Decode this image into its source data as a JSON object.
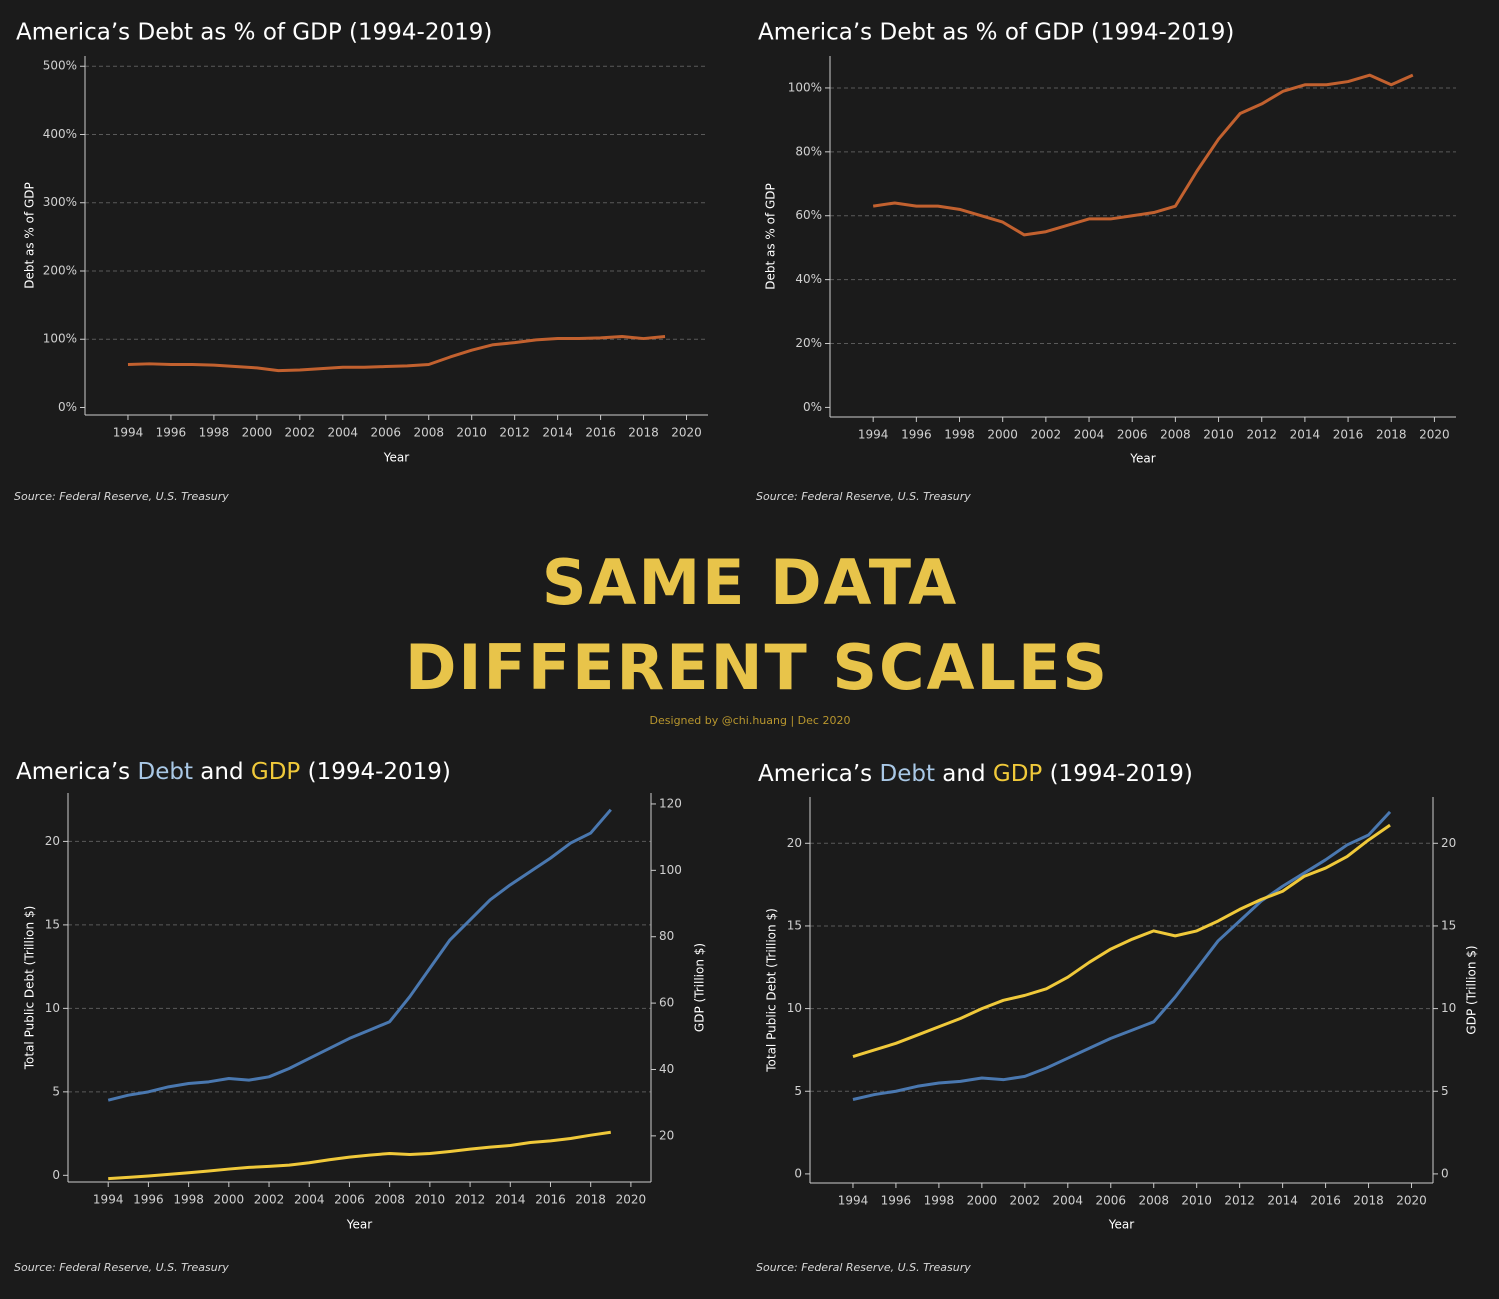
{
  "header": {
    "headline": [
      "SAME DATA",
      "DIFFERENT SCALES"
    ],
    "credit": "Designed by @chi.huang | Dec 2020"
  },
  "chart_data": [
    {
      "type": "line",
      "title": "America’s Debt as % of GDP (1994-2019)",
      "x_label": "Year",
      "y_label": "Debt as % of GDP",
      "source": "Source: Federal Reserve, U.S. Treasury",
      "x": [
        1994,
        1995,
        1996,
        1997,
        1998,
        1999,
        2000,
        2001,
        2002,
        2003,
        2004,
        2005,
        2006,
        2007,
        2008,
        2009,
        2010,
        2011,
        2012,
        2013,
        2014,
        2015,
        2016,
        2017,
        2018,
        2019
      ],
      "values": [
        63,
        64,
        63,
        63,
        62,
        60,
        58,
        54,
        55,
        57,
        59,
        59,
        60,
        61,
        63,
        74,
        84,
        92,
        95,
        99,
        101,
        101,
        102,
        104,
        101,
        104
      ],
      "color": "#c2612f",
      "grid": true,
      "xlim": [
        1992,
        2021
      ],
      "xticks": [
        1994,
        1996,
        1998,
        2000,
        2002,
        2004,
        2006,
        2008,
        2010,
        2012,
        2014,
        2016,
        2018,
        2020
      ],
      "ylim": [
        -11,
        515
      ],
      "yticks": [
        {
          "value": 0,
          "label": "0%"
        },
        {
          "value": 100,
          "label": "100%"
        },
        {
          "value": 200,
          "label": "200%"
        },
        {
          "value": 300,
          "label": "300%"
        },
        {
          "value": 400,
          "label": "400%"
        },
        {
          "value": 500,
          "label": "500%"
        }
      ]
    },
    {
      "type": "line",
      "title": "America’s Debt as % of GDP (1994-2019)",
      "x_label": "Year",
      "y_label": "Debt as % of GDP",
      "source": "Source: Federal Reserve, U.S. Treasury",
      "x": [
        1994,
        1995,
        1996,
        1997,
        1998,
        1999,
        2000,
        2001,
        2002,
        2003,
        2004,
        2005,
        2006,
        2007,
        2008,
        2009,
        2010,
        2011,
        2012,
        2013,
        2014,
        2015,
        2016,
        2017,
        2018,
        2019
      ],
      "values": [
        63,
        64,
        63,
        63,
        62,
        60,
        58,
        54,
        55,
        57,
        59,
        59,
        60,
        61,
        63,
        74,
        84,
        92,
        95,
        99,
        101,
        101,
        102,
        104,
        101,
        104
      ],
      "color": "#c2612f",
      "grid": true,
      "xlim": [
        1992,
        2021
      ],
      "xticks": [
        1994,
        1996,
        1998,
        2000,
        2002,
        2004,
        2006,
        2008,
        2010,
        2012,
        2014,
        2016,
        2018,
        2020
      ],
      "ylim": [
        -3,
        110
      ],
      "yticks": [
        {
          "value": 0,
          "label": "0%"
        },
        {
          "value": 20,
          "label": "20%"
        },
        {
          "value": 40,
          "label": "40%"
        },
        {
          "value": 60,
          "label": "60%"
        },
        {
          "value": 80,
          "label": "80%"
        },
        {
          "value": 100,
          "label": "100%"
        }
      ]
    },
    {
      "type": "line",
      "title": "America’s Debt and GDP (1994-2019)",
      "x_label": "Year",
      "y_label": "Total Public Debt (Trillion $)",
      "y2_label": "GDP (Trillion $)",
      "source": "Source: Federal Reserve, U.S. Treasury",
      "x": [
        1994,
        1995,
        1996,
        1997,
        1998,
        1999,
        2000,
        2001,
        2002,
        2003,
        2004,
        2005,
        2006,
        2007,
        2008,
        2009,
        2010,
        2011,
        2012,
        2013,
        2014,
        2015,
        2016,
        2017,
        2018,
        2019
      ],
      "series": [
        {
          "name": "Debt",
          "color": "#4a78b0",
          "title_color": "#a9c8e6",
          "values": [
            4.5,
            4.8,
            5.0,
            5.3,
            5.5,
            5.6,
            5.8,
            5.7,
            5.9,
            6.4,
            7.0,
            7.6,
            8.2,
            8.7,
            9.2,
            10.7,
            12.4,
            14.1,
            15.3,
            16.5,
            17.4,
            18.2,
            19.0,
            19.9,
            20.5,
            21.9
          ]
        },
        {
          "name": "GDP",
          "color": "#f0c93a",
          "title_color": "#f0c93a",
          "axis": "y2",
          "values": [
            7.1,
            7.5,
            7.9,
            8.4,
            8.9,
            9.4,
            10.0,
            10.5,
            10.8,
            11.2,
            11.9,
            12.8,
            13.6,
            14.2,
            14.7,
            14.4,
            14.7,
            15.3,
            16.0,
            16.6,
            17.1,
            18.0,
            18.5,
            19.2,
            20.2,
            21.1
          ]
        }
      ],
      "grid": true,
      "xlim": [
        1992,
        2021
      ],
      "xticks": [
        1994,
        1996,
        1998,
        2000,
        2002,
        2004,
        2006,
        2008,
        2010,
        2012,
        2014,
        2016,
        2018,
        2020
      ],
      "ylim": [
        -0.4,
        22.9
      ],
      "yticks": [
        0,
        5,
        10,
        15,
        20
      ],
      "y2lim": [
        6.1,
        123.3
      ],
      "y2ticks": [
        20,
        40,
        60,
        80,
        100,
        120
      ]
    },
    {
      "type": "line",
      "title": "America’s Debt and GDP (1994-2019)",
      "x_label": "Year",
      "y_label": "Total Public Debt (Trillion $)",
      "y2_label": "GDP (Trillion $)",
      "source": "Source: Federal Reserve, U.S. Treasury",
      "x": [
        1994,
        1995,
        1996,
        1997,
        1998,
        1999,
        2000,
        2001,
        2002,
        2003,
        2004,
        2005,
        2006,
        2007,
        2008,
        2009,
        2010,
        2011,
        2012,
        2013,
        2014,
        2015,
        2016,
        2017,
        2018,
        2019
      ],
      "series": [
        {
          "name": "Debt",
          "color": "#4a78b0",
          "title_color": "#a9c8e6",
          "values": [
            4.5,
            4.8,
            5.0,
            5.3,
            5.5,
            5.6,
            5.8,
            5.7,
            5.9,
            6.4,
            7.0,
            7.6,
            8.2,
            8.7,
            9.2,
            10.7,
            12.4,
            14.1,
            15.3,
            16.5,
            17.4,
            18.2,
            19.0,
            19.9,
            20.5,
            21.9
          ]
        },
        {
          "name": "GDP",
          "color": "#f0c93a",
          "title_color": "#f0c93a",
          "axis": "y2",
          "values": [
            7.1,
            7.5,
            7.9,
            8.4,
            8.9,
            9.4,
            10.0,
            10.5,
            10.8,
            11.2,
            11.9,
            12.8,
            13.6,
            14.2,
            14.7,
            14.4,
            14.7,
            15.3,
            16.0,
            16.6,
            17.1,
            18.0,
            18.5,
            19.2,
            20.2,
            21.1
          ]
        }
      ],
      "grid": true,
      "xlim": [
        1992,
        2021
      ],
      "xticks": [
        1994,
        1996,
        1998,
        2000,
        2002,
        2004,
        2006,
        2008,
        2010,
        2012,
        2014,
        2016,
        2018,
        2020
      ],
      "ylim": [
        -0.55,
        22.8
      ],
      "yticks": [
        0,
        5,
        10,
        15,
        20
      ],
      "y2lim": [
        -0.55,
        22.8
      ],
      "y2ticks": [
        0,
        5,
        10,
        15,
        20
      ]
    }
  ]
}
